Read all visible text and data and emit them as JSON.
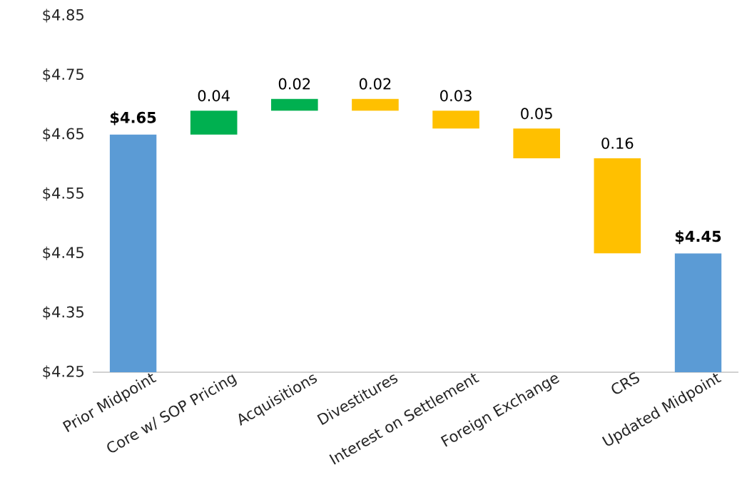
{
  "chart_data": {
    "type": "bar",
    "categories": [
      "Prior Midpoint",
      "Core  w/ SOP Pricing",
      "Acquisitions",
      "Divestitures",
      "Interest on Settlement",
      "Foreign Exchange",
      "CRS",
      "Updated Midpoint"
    ],
    "values": [
      4.65,
      0.04,
      0.02,
      0.02,
      0.03,
      0.05,
      0.16,
      4.45
    ],
    "base": [
      null,
      4.65,
      4.69,
      4.69,
      4.66,
      4.61,
      4.45,
      null
    ],
    "colors": [
      "#5b9bd5",
      "#00b050",
      "#00b050",
      "#ffc000",
      "#ffc000",
      "#ffc000",
      "#ffc000",
      "#5b9bd5"
    ],
    "value_labels": [
      "$4.65",
      "0.04",
      "0.02",
      "0.02",
      "0.03",
      "0.05",
      "0.16",
      "$4.45"
    ],
    "ylim": [
      4.25,
      4.85
    ],
    "yticks": [
      {
        "value": 4.25,
        "label": "$4.25"
      },
      {
        "value": 4.35,
        "label": "$4.35"
      },
      {
        "value": 4.45,
        "label": "$4.45"
      },
      {
        "value": 4.55,
        "label": "$4.55"
      },
      {
        "value": 4.65,
        "label": "$4.65"
      },
      {
        "value": 4.75,
        "label": "$4.75"
      },
      {
        "value": 4.85,
        "label": "$4.85"
      }
    ],
    "grid": false
  }
}
